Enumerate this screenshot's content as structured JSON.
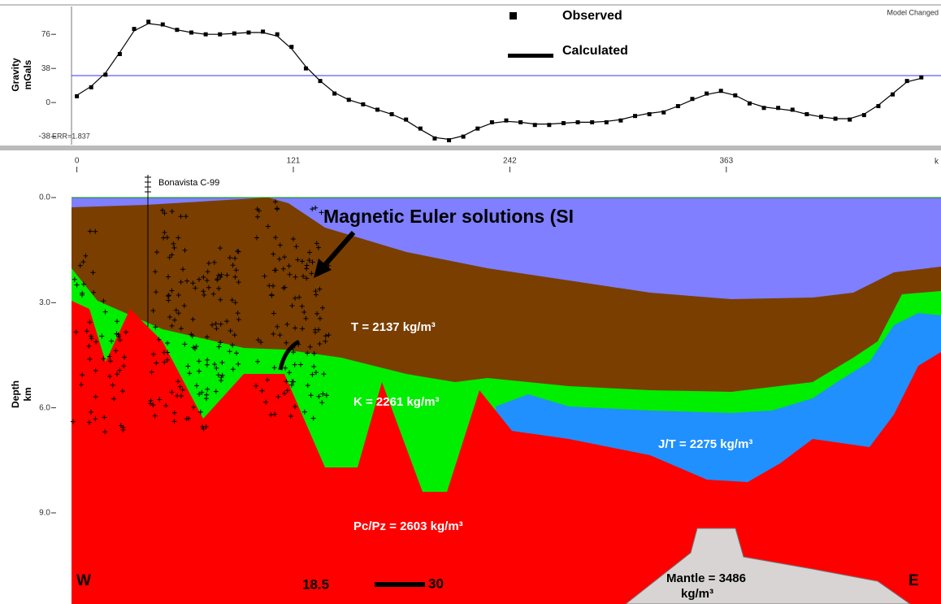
{
  "chart_data": {
    "type": "line",
    "ylabel": [
      "Gravity",
      "mGals"
    ],
    "status": "Model Changed",
    "annotation": "ERR=1.837",
    "x_unit": "k",
    "x": [
      0,
      8,
      16,
      24,
      32,
      40,
      48,
      56,
      64,
      72,
      80,
      88,
      96,
      104,
      112,
      120,
      128,
      136,
      144,
      152,
      160,
      168,
      176,
      184,
      192,
      200,
      208,
      216,
      224,
      232,
      240,
      248,
      256,
      264,
      272,
      280,
      288,
      296,
      304,
      312,
      320,
      328,
      336,
      344,
      352,
      360,
      368,
      376,
      384,
      392,
      400,
      408,
      416,
      424,
      432,
      440,
      448,
      456,
      464,
      472
    ],
    "series": [
      {
        "name": "Observed",
        "color": "#000000",
        "marker": "square",
        "values": [
          7,
          17,
          31,
          54,
          82,
          90,
          87,
          81,
          78,
          76,
          76,
          77,
          78,
          79,
          76,
          62,
          38,
          24,
          10,
          3,
          -2,
          -8,
          -13,
          -19,
          -29,
          -40,
          -42,
          -38,
          -29,
          -22,
          -20,
          -22,
          -25,
          -25,
          -23,
          -22,
          -22,
          -22,
          -20,
          -15,
          -13,
          -11,
          -4,
          4,
          10,
          13,
          8,
          -1,
          -6,
          -6,
          -8,
          -13,
          -16,
          -18,
          -19,
          -14,
          -4,
          9,
          24,
          28
        ]
      },
      {
        "name": "Calculated",
        "color": "#000000",
        "marker": "line",
        "values": [
          8,
          18,
          33,
          56,
          80,
          88,
          86,
          81,
          78,
          76,
          76,
          77,
          78,
          78,
          74,
          60,
          40,
          24,
          11,
          3,
          -2,
          -8,
          -13,
          -20,
          -30,
          -39,
          -41,
          -37,
          -29,
          -23,
          -21,
          -22,
          -24,
          -24,
          -23,
          -22,
          -22,
          -21,
          -19,
          -15,
          -12,
          -10,
          -4,
          3,
          9,
          12,
          8,
          0,
          -5,
          -7,
          -9,
          -13,
          -16,
          -18,
          -18,
          -13,
          -3,
          10,
          23,
          27
        ]
      }
    ],
    "xlim": [
      -3,
      483
    ],
    "xticks": [
      0,
      121,
      242,
      363
    ],
    "ylim": [
      -47,
      107
    ],
    "yticks": [
      -38,
      0,
      38,
      76
    ]
  },
  "section": {
    "ylabel": [
      "Depth",
      "km"
    ],
    "ylim": [
      -0.65,
      11.6
    ],
    "yticks": [
      {
        "value": 0,
        "label": "0.0"
      },
      {
        "value": 3,
        "label": "3.0"
      },
      {
        "value": 6,
        "label": "6.0"
      },
      {
        "value": 9,
        "label": "9.0"
      }
    ],
    "well": "Bonavista C-99",
    "euler_label": "Magnetic Euler solutions (SI",
    "layers": {
      "t": "T = 2137 kg/m³",
      "k": "K = 2261 kg/m³",
      "jt": "J/T = 2275 kg/m³",
      "pc": "Pc/Pz = 2603 kg/m³",
      "mantle": [
        "Mantle = 3486",
        "kg/m³"
      ]
    },
    "west": "W",
    "east": "E",
    "scale": [
      "18.5",
      "30"
    ]
  }
}
